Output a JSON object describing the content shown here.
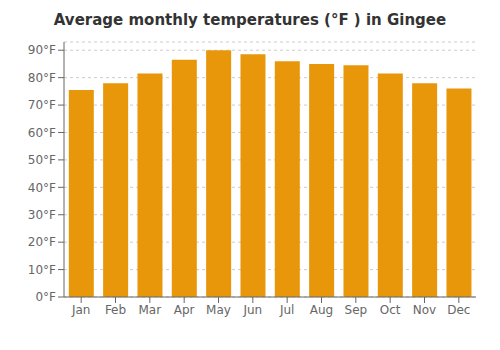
{
  "chart_data": {
    "type": "bar",
    "title": "Average monthly temperatures (°F ) in Gingee",
    "categories": [
      "Jan",
      "Feb",
      "Mar",
      "Apr",
      "May",
      "Jun",
      "Jul",
      "Aug",
      "Sep",
      "Oct",
      "Nov",
      "Dec"
    ],
    "values": [
      75.5,
      78.0,
      81.5,
      86.5,
      90.0,
      88.5,
      86.0,
      85.0,
      84.5,
      81.5,
      78.0,
      76.0
    ],
    "color": "#E8960A",
    "ylim": [
      0,
      93
    ],
    "yticks": [
      {
        "value": 0,
        "label": "0°F"
      },
      {
        "value": 10,
        "label": "10°F"
      },
      {
        "value": 20,
        "label": "20°F"
      },
      {
        "value": 30,
        "label": "30°F"
      },
      {
        "value": 40,
        "label": "40°F"
      },
      {
        "value": 50,
        "label": "50°F"
      },
      {
        "value": 60,
        "label": "60°F"
      },
      {
        "value": 70,
        "label": "70°F"
      },
      {
        "value": 80,
        "label": "80°F"
      },
      {
        "value": 90,
        "label": "90°F"
      }
    ],
    "grid": true
  }
}
